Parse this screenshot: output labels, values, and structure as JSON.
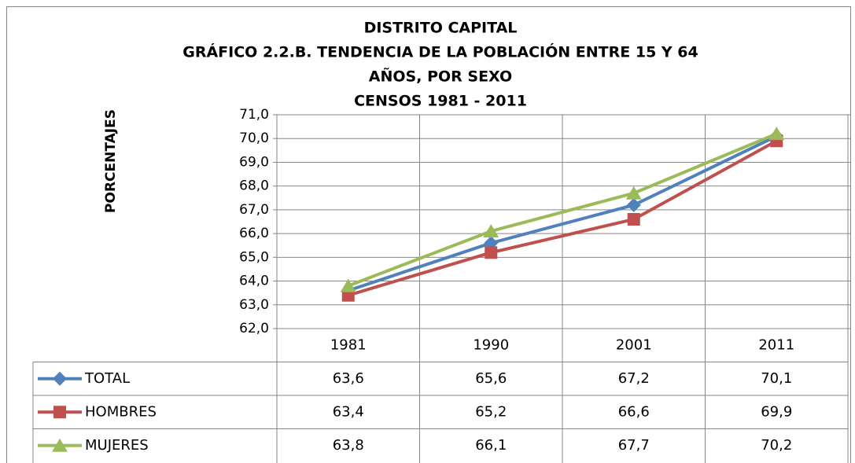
{
  "chart_data": {
    "type": "line",
    "title": [
      "DISTRITO CAPITAL",
      "GRÁFICO 2.2.B. TENDENCIA DE LA POBLACIÓN ENTRE 15 Y 64",
      "AÑOS, POR SEXO",
      "CENSOS 1981 - 2011"
    ],
    "y_label": "PORCENTAJES",
    "categories": [
      "1981",
      "1990",
      "2001",
      "2011"
    ],
    "series": [
      {
        "name": "TOTAL",
        "color": "#4f81bd",
        "marker": "diamond",
        "values": [
          63.6,
          65.6,
          67.2,
          70.1
        ],
        "value_labels": [
          "63,6",
          "65,6",
          "67,2",
          "70,1"
        ]
      },
      {
        "name": "HOMBRES",
        "color": "#c0504d",
        "marker": "square",
        "values": [
          63.4,
          65.2,
          66.6,
          69.9
        ],
        "value_labels": [
          "63,4",
          "65,2",
          "66,6",
          "69,9"
        ]
      },
      {
        "name": "MUJERES",
        "color": "#9bbb59",
        "marker": "triangle",
        "values": [
          63.8,
          66.1,
          67.7,
          70.2
        ],
        "value_labels": [
          "63,8",
          "66,1",
          "67,7",
          "70,2"
        ]
      }
    ],
    "ylim": [
      62,
      71
    ],
    "yticks": [
      {
        "value": 62,
        "label": "62,0"
      },
      {
        "value": 63,
        "label": "63,0"
      },
      {
        "value": 64,
        "label": "64,0"
      },
      {
        "value": 65,
        "label": "65,0"
      },
      {
        "value": 66,
        "label": "66,0"
      },
      {
        "value": 67,
        "label": "67,0"
      },
      {
        "value": 68,
        "label": "68,0"
      },
      {
        "value": 69,
        "label": "69,0"
      },
      {
        "value": 70,
        "label": "70,0"
      },
      {
        "value": 71,
        "label": "71,0"
      }
    ],
    "grid": true,
    "data_table": true
  }
}
